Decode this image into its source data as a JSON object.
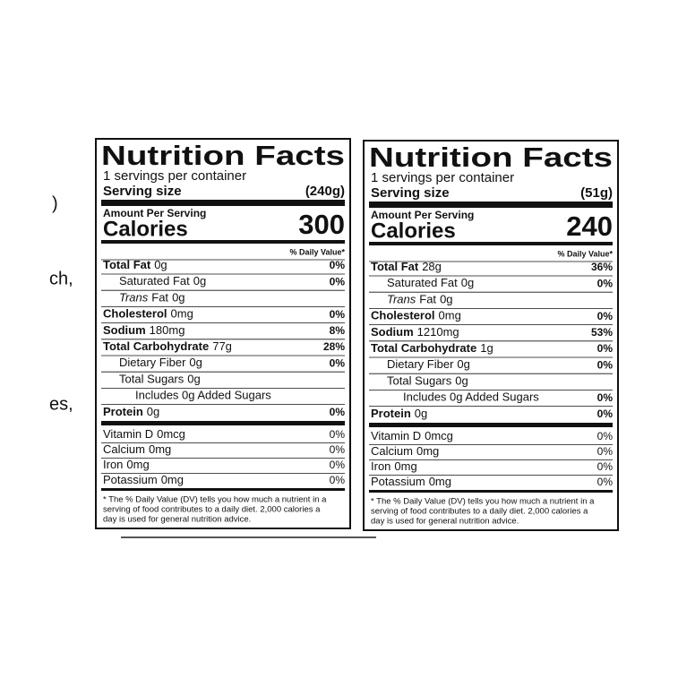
{
  "fragments": [
    ")",
    "ch,",
    "es,"
  ],
  "labels": [
    {
      "title": "Nutrition Facts",
      "servings": "1 servings per container",
      "serving_size_label": "Serving size",
      "serving_size": "(240g)",
      "amount_per_serving": "Amount Per Serving",
      "calories_label": "Calories",
      "calories": "300",
      "dv_header": "% Daily Value*",
      "nutrients": [
        {
          "name": "Total Fat",
          "amount": "0g",
          "dv": "0%",
          "sub": [
            {
              "name": "Saturated Fat",
              "amount": "0g",
              "dv": "0%"
            },
            {
              "name_italic": "Trans",
              "name": "Fat",
              "amount": "0g"
            }
          ]
        },
        {
          "name": "Cholesterol",
          "amount": "0mg",
          "dv": "0%"
        },
        {
          "name": "Sodium",
          "amount": "180mg",
          "dv": "8%"
        },
        {
          "name": "Total Carbohydrate",
          "amount": "77g",
          "dv": "28%",
          "sub": [
            {
              "name": "Dietary Fiber",
              "amount": "0g",
              "dv": "0%"
            },
            {
              "name": "Total Sugars",
              "amount": "0g",
              "sub": [
                {
                  "name": "Includes 0g Added Sugars"
                }
              ]
            }
          ]
        },
        {
          "name": "Protein",
          "amount": "0g",
          "dv": "0%"
        }
      ],
      "vitamins": [
        {
          "name": "Vitamin D",
          "amount": "0mcg",
          "dv": "0%"
        },
        {
          "name": "Calcium",
          "amount": "0mg",
          "dv": "0%"
        },
        {
          "name": "Iron",
          "amount": "0mg",
          "dv": "0%"
        },
        {
          "name": "Potassium",
          "amount": "0mg",
          "dv": "0%"
        }
      ],
      "footnote": [
        "* The % Daily Value (DV) tells you how much a nutrient in a",
        "serving of food contributes to a daily diet. 2,000 calories a",
        "day is used for general nutrition advice."
      ]
    },
    {
      "title": "Nutrition Facts",
      "servings": "1 servings per container",
      "serving_size_label": "Serving size",
      "serving_size": "(51g)",
      "amount_per_serving": "Amount Per Serving",
      "calories_label": "Calories",
      "calories": "240",
      "dv_header": "% Daily Value*",
      "nutrients": [
        {
          "name": "Total Fat",
          "amount": "28g",
          "dv": "36%",
          "sub": [
            {
              "name": "Saturated Fat",
              "amount": "0g",
              "dv": "0%"
            },
            {
              "name_italic": "Trans",
              "name": "Fat",
              "amount": "0g"
            }
          ]
        },
        {
          "name": "Cholesterol",
          "amount": "0mg",
          "dv": "0%"
        },
        {
          "name": "Sodium",
          "amount": "1210mg",
          "dv": "53%"
        },
        {
          "name": "Total Carbohydrate",
          "amount": "1g",
          "dv": "0%",
          "sub": [
            {
              "name": "Dietary Fiber",
              "amount": "0g",
              "dv": "0%"
            },
            {
              "name": "Total Sugars",
              "amount": "0g",
              "sub": [
                {
                  "name": "Includes 0g Added Sugars",
                  "dv": "0%"
                }
              ]
            }
          ]
        },
        {
          "name": "Protein",
          "amount": "0g",
          "dv": "0%"
        }
      ],
      "vitamins": [
        {
          "name": "Vitamin D",
          "amount": "0mcg",
          "dv": "0%"
        },
        {
          "name": "Calcium",
          "amount": "0mg",
          "dv": "0%"
        },
        {
          "name": "Iron",
          "amount": "0mg",
          "dv": "0%"
        },
        {
          "name": "Potassium",
          "amount": "0mg",
          "dv": "0%"
        }
      ],
      "footnote": [
        "* The % Daily Value (DV) tells you how much a nutrient in a",
        "serving of food contributes to a daily diet. 2,000 calories a",
        "day is used for general nutrition advice."
      ]
    }
  ]
}
